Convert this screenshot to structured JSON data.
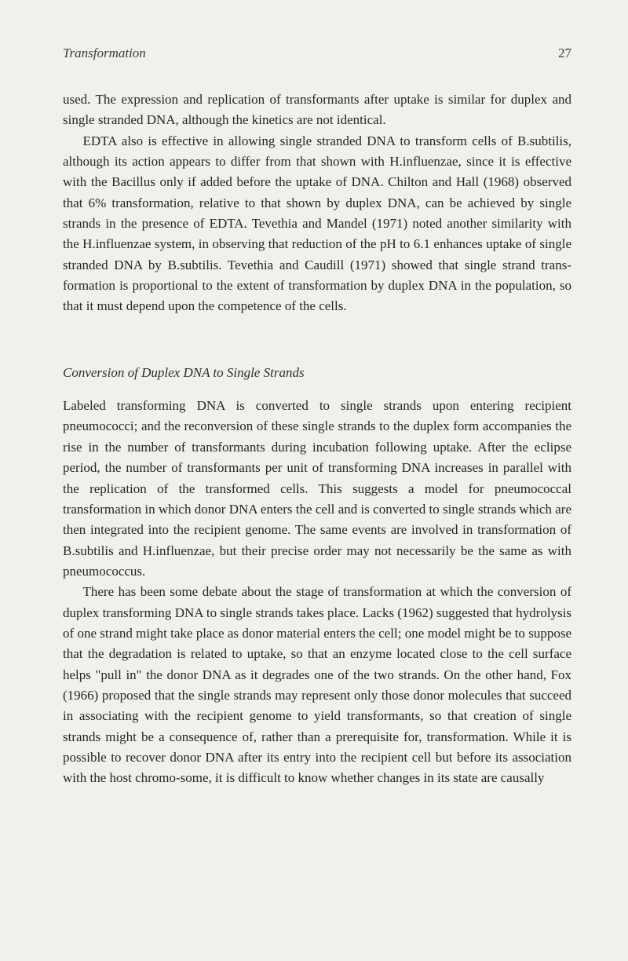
{
  "header": {
    "running_head": "Transformation",
    "page_number": "27"
  },
  "paragraphs": {
    "p1": "used. The expression and replication of transformants after uptake is similar for duplex and single stranded DNA, although the kinetics are not identical.",
    "p2": "EDTA also is effective in allowing single stranded DNA to transform cells of B.subtilis, although its action appears to differ from that shown with H.influenzae, since it is effective with the Bacillus only if added before the uptake of DNA. Chilton and Hall (1968) observed that 6% transformation, relative to that shown by duplex DNA, can be achieved by single strands in the presence of EDTA. Tevethia and Mandel (1971) noted another similarity with the H.influenzae system, in observing that reduction of the pH to 6.1 enhances uptake of single stranded DNA by B.subtilis. Tevethia and Caudill (1971) showed that single strand trans-formation is proportional to the extent of transformation by duplex DNA in the population, so that it must depend upon the competence of the cells."
  },
  "section": {
    "heading": "Conversion of Duplex DNA to Single Strands",
    "p1": "Labeled transforming DNA is converted to single strands upon entering recipient pneumococci; and the reconversion of these single strands to the duplex form accompanies the rise in the number of transformants during incubation following uptake. After the eclipse period, the number of transformants per unit of transforming DNA increases in parallel with the replication of the transformed cells. This suggests a model for pneumococcal transformation in which donor DNA enters the cell and is converted to single strands which are then integrated into the recipient genome. The same events are involved in transformation of B.subtilis and H.influenzae, but their precise order may not necessarily be the same as with pneumococcus.",
    "p2": "There has been some debate about the stage of transformation at which the conversion of duplex transforming DNA to single strands takes place. Lacks (1962) suggested that hydrolysis of one strand might take place as donor material enters the cell; one model might be to suppose that the degradation is related to uptake, so that an enzyme located close to the cell surface helps \"pull in\" the donor DNA as it degrades one of the two strands. On the other hand, Fox (1966) proposed that the single strands may represent only those donor molecules that succeed in associating with the recipient genome to yield transformants, so that creation of single strands might be a consequence of, rather than a prerequisite for, transformation. While it is possible to recover donor DNA after its entry into the recipient cell but before its association with the host chromo-some, it is difficult to know whether changes in its state are causally"
  },
  "colors": {
    "background": "#f2f0ea",
    "text": "#252523",
    "header_text": "#3a3a38"
  },
  "typography": {
    "body_fontsize": 17,
    "line_height": 1.55,
    "font_family": "Georgia, Times New Roman, serif"
  }
}
